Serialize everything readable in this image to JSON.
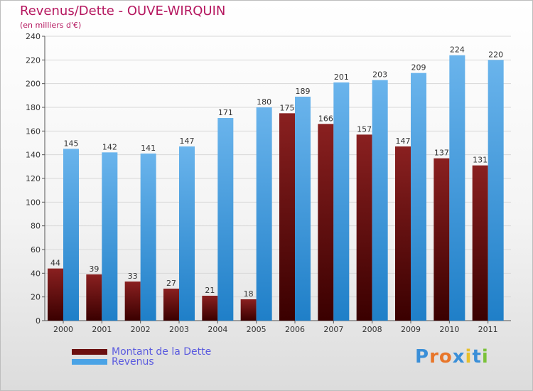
{
  "header": {
    "title": "Revenus/Dette - OUVE-WIRQUIN",
    "subtitle": "(en milliers d'€)"
  },
  "colors": {
    "dette_top": "#8a2020",
    "dette_bottom": "#3a0000",
    "revenus_top": "#6ab4ec",
    "revenus_bottom": "#1f7fc8",
    "title": "#b5175f",
    "legend_text": "#5a5adf"
  },
  "legend": {
    "items": [
      {
        "label": "Montant de la Dette",
        "color": "#6b0f0f"
      },
      {
        "label": "Revenus",
        "color": "#4aa3e6"
      }
    ]
  },
  "logo": {
    "letters": [
      "P",
      "r",
      "o",
      "x",
      "i",
      "t",
      "i"
    ],
    "colors": [
      "#3a8fd8",
      "#e8762a",
      "#e8762a",
      "#3a8fd8",
      "#e8c02a",
      "#3a8fd8",
      "#7ac23a"
    ]
  },
  "chart_data": {
    "type": "bar",
    "categories": [
      "2000",
      "2001",
      "2002",
      "2003",
      "2004",
      "2005",
      "2006",
      "2007",
      "2008",
      "2009",
      "2010",
      "2011"
    ],
    "series": [
      {
        "name": "Montant de la Dette",
        "values": [
          44,
          39,
          33,
          27,
          21,
          18,
          175,
          166,
          157,
          147,
          137,
          131
        ]
      },
      {
        "name": "Revenus",
        "values": [
          145,
          142,
          141,
          147,
          171,
          180,
          189,
          201,
          203,
          209,
          224,
          220
        ]
      }
    ],
    "ylim": [
      0,
      240
    ],
    "yticks": [
      0,
      20,
      40,
      60,
      80,
      100,
      120,
      140,
      160,
      180,
      200,
      220,
      240
    ],
    "grid": true,
    "legend_position": "bottom-left"
  }
}
